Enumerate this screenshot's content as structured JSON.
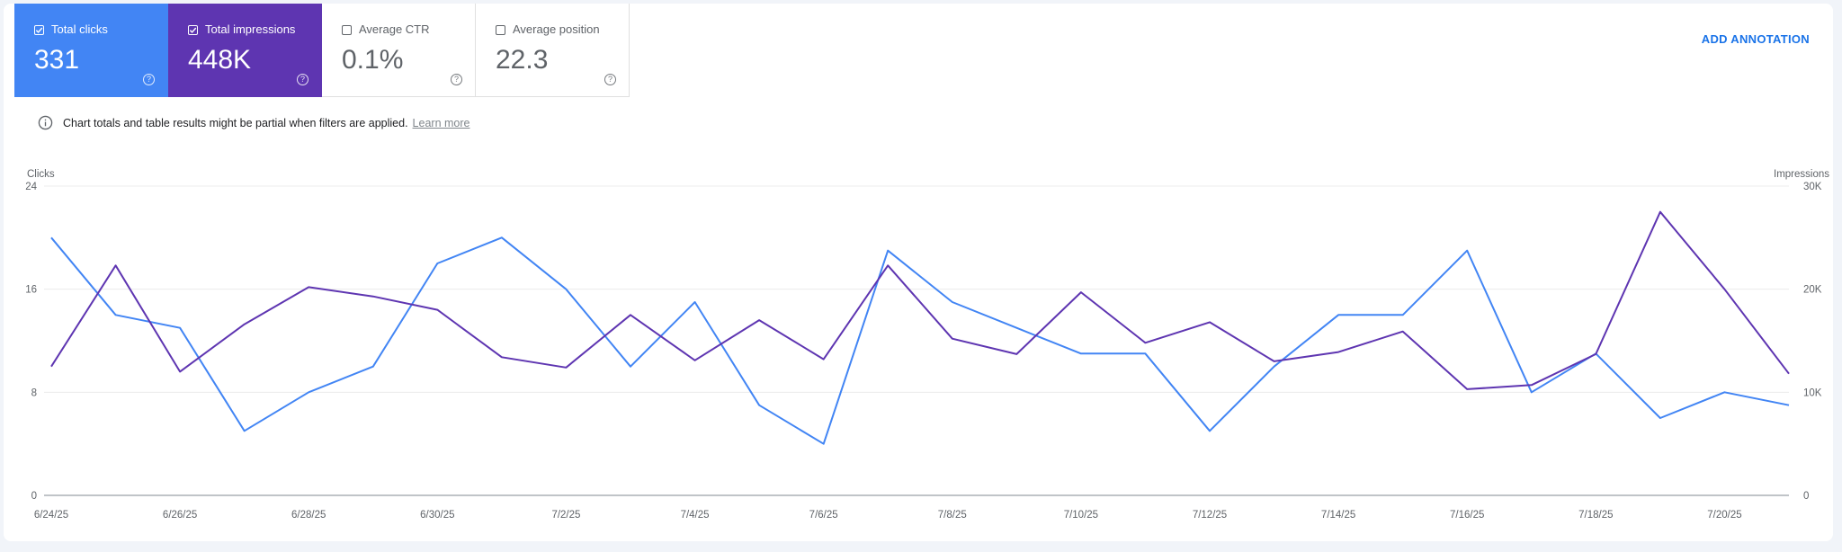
{
  "metrics": [
    {
      "label": "Total clicks",
      "value": "331",
      "checked": true
    },
    {
      "label": "Total impressions",
      "value": "448K",
      "checked": true
    },
    {
      "label": "Average CTR",
      "value": "0.1%",
      "checked": false
    },
    {
      "label": "Average position",
      "value": "22.3",
      "checked": false
    }
  ],
  "add_annotation_label": "ADD ANNOTATION",
  "notice": {
    "text": "Chart totals and table results might be partial when filters are applied.",
    "link": "Learn more"
  },
  "colors": {
    "clicks": "#4285f4",
    "impressions": "#5e35b1"
  },
  "chart_data": {
    "type": "line",
    "x": [
      "6/24/25",
      "6/25/25",
      "6/26/25",
      "6/27/25",
      "6/28/25",
      "6/29/25",
      "6/30/25",
      "7/1/25",
      "7/2/25",
      "7/3/25",
      "7/4/25",
      "7/5/25",
      "7/6/25",
      "7/7/25",
      "7/8/25",
      "7/9/25",
      "7/10/25",
      "7/11/25",
      "7/12/25",
      "7/13/25",
      "7/14/25",
      "7/15/25",
      "7/16/25",
      "7/17/25",
      "7/18/25",
      "7/19/25",
      "7/20/25",
      "7/21/25"
    ],
    "x_tick_labels": [
      "6/24/25",
      "6/26/25",
      "6/28/25",
      "6/30/25",
      "7/2/25",
      "7/4/25",
      "7/6/25",
      "7/8/25",
      "7/10/25",
      "7/12/25",
      "7/14/25",
      "7/16/25",
      "7/18/25",
      "7/20/25"
    ],
    "ylabel": "Clicks",
    "y2label": "Impressions",
    "ylim": [
      0,
      24
    ],
    "y2lim": [
      0,
      30000
    ],
    "yticks": [
      "0",
      "8",
      "16",
      "24"
    ],
    "y2ticks": [
      "0",
      "10K",
      "20K",
      "30K"
    ],
    "grid": true,
    "series": [
      {
        "name": "Total clicks",
        "axis": "left",
        "values": [
          20,
          14,
          13,
          5,
          8,
          10,
          18,
          20,
          16,
          10,
          15,
          7,
          4,
          19,
          15,
          13,
          11,
          11,
          5,
          10,
          14,
          14,
          19,
          8,
          11,
          6,
          8,
          7
        ]
      },
      {
        "name": "Total impressions",
        "axis": "right",
        "values": [
          12500,
          22300,
          12000,
          16600,
          20200,
          19300,
          18000,
          13400,
          12400,
          17500,
          13100,
          17000,
          13200,
          22300,
          15200,
          13700,
          19700,
          14800,
          16800,
          13000,
          13900,
          15900,
          10300,
          10700,
          13700,
          27500,
          20000,
          11800
        ]
      }
    ]
  }
}
